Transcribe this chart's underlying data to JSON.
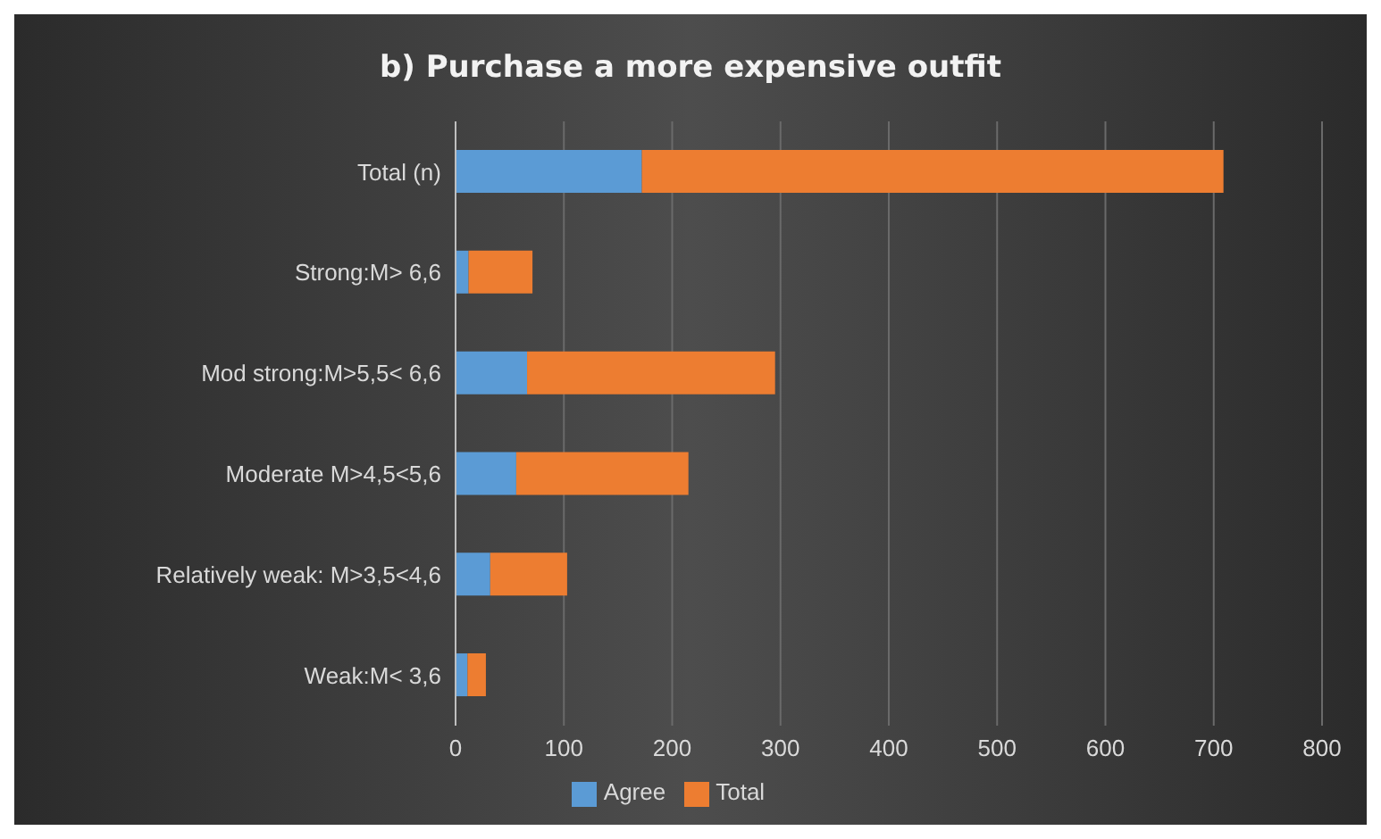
{
  "chart_data": {
    "type": "bar",
    "orientation": "horizontal",
    "stacked": true,
    "title": "b) Purchase a more expensive outfit",
    "categories": [
      "Total (n)",
      "Strong:M> 6,6",
      "Mod strong:M>5,5< 6,6",
      "Moderate M>4,5<5,6",
      "Relatively weak: M>3,5<4,6",
      "Weak:M< 3,6"
    ],
    "series": [
      {
        "name": "Agree",
        "color": "#5b9bd5",
        "values": [
          172,
          12,
          66,
          56,
          32,
          11
        ]
      },
      {
        "name": "Total",
        "color": "#ed7d31",
        "values": [
          537,
          59,
          229,
          159,
          71,
          17
        ]
      }
    ],
    "xlim": [
      0,
      800
    ],
    "xticks": [
      0,
      100,
      200,
      300,
      400,
      500,
      600,
      700,
      800
    ],
    "grid": "x",
    "legend": "bottom"
  }
}
